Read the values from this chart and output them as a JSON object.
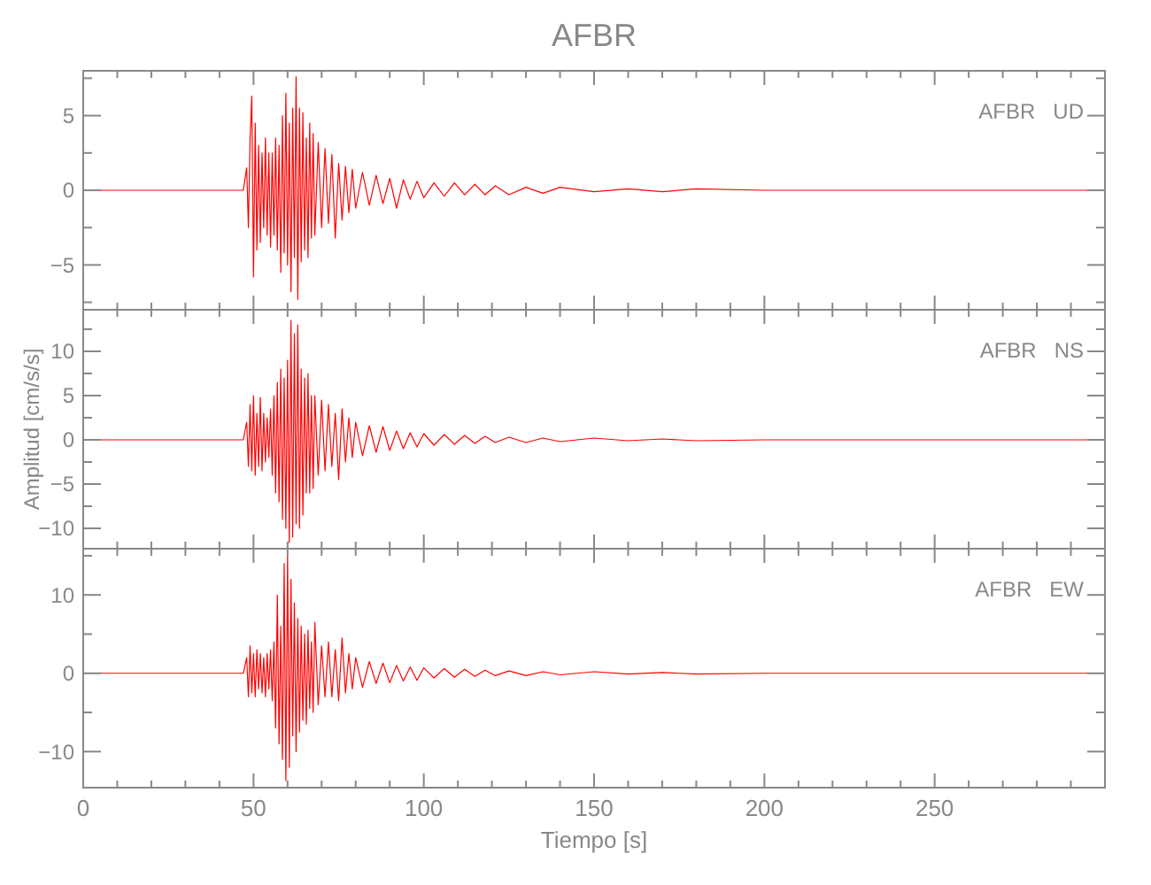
{
  "chart_data": [
    {
      "type": "line",
      "title": "AFBR",
      "annotations": [
        "AFBR   UD"
      ],
      "tick_labels": "y",
      "grid": false,
      "marker": "none",
      "line_style": "solid",
      "xlim": [
        0,
        300
      ],
      "xticks": [
        0,
        {
          "value": 10,
          "label": null
        },
        {
          "value": 20,
          "label": null
        },
        {
          "value": 30,
          "label": null
        },
        {
          "value": 40,
          "label": null
        },
        50,
        {
          "value": 60,
          "label": null
        },
        {
          "value": 70,
          "label": null
        },
        {
          "value": 80,
          "label": null
        },
        {
          "value": 90,
          "label": null
        },
        100,
        {
          "value": 110,
          "label": null
        },
        {
          "value": 120,
          "label": null
        },
        {
          "value": 130,
          "label": null
        },
        {
          "value": 140,
          "label": null
        },
        150,
        {
          "value": 160,
          "label": null
        },
        {
          "value": 170,
          "label": null
        },
        {
          "value": 180,
          "label": null
        },
        {
          "value": 190,
          "label": null
        },
        200,
        {
          "value": 210,
          "label": null
        },
        {
          "value": 220,
          "label": null
        },
        {
          "value": 230,
          "label": null
        },
        {
          "value": 240,
          "label": null
        },
        250,
        {
          "value": 260,
          "label": null
        },
        {
          "value": 270,
          "label": null
        },
        {
          "value": 280,
          "label": null
        },
        {
          "value": 290,
          "label": null
        }
      ],
      "ylim": [
        -8,
        8
      ],
      "yticks": [
        {
          "value": -7.5,
          "label": null
        },
        {
          "value": -5,
          "label": "−5"
        },
        {
          "value": -2.5,
          "label": null
        },
        0,
        {
          "value": 2.5,
          "label": null
        },
        5,
        {
          "value": 7.5,
          "label": null
        }
      ],
      "x": [
        0,
        47,
        48,
        48.5,
        49,
        49.5,
        50,
        50.5,
        51,
        51.5,
        52,
        52.5,
        53,
        53.5,
        54,
        54.5,
        55,
        55.5,
        56,
        56.5,
        57,
        57.5,
        58,
        58.5,
        59,
        59.5,
        60,
        60.5,
        61,
        61.5,
        62,
        62.5,
        63,
        63.5,
        64,
        64.5,
        65,
        65.5,
        66,
        66.5,
        67,
        67.5,
        68,
        69,
        70,
        71,
        72,
        73,
        74,
        75,
        76,
        77,
        78,
        79,
        80,
        82,
        84,
        86,
        88,
        90,
        92,
        94,
        96,
        98,
        100,
        103,
        106,
        109,
        112,
        115,
        118,
        121,
        125,
        130,
        135,
        140,
        150,
        160,
        170,
        180,
        200,
        300
      ],
      "series": [
        {
          "color": "#ff0000",
          "values": [
            0,
            0,
            1.5,
            -2.5,
            3.5,
            6.3,
            -5.8,
            4.5,
            -4,
            3,
            -3.5,
            2.5,
            -2.5,
            3.5,
            -3,
            2.5,
            -3.8,
            2.5,
            -3,
            3.5,
            -4,
            3,
            -5.5,
            5,
            -4.2,
            6.5,
            -5,
            4.5,
            -6.8,
            5.5,
            -4.5,
            7.6,
            -7.3,
            5.5,
            -4.8,
            5.2,
            -4,
            3.5,
            -4.5,
            4.5,
            -3.2,
            3.8,
            -3,
            3.2,
            -2.5,
            2.8,
            -2.2,
            2.4,
            -3.2,
            1.8,
            -2,
            1.6,
            -1.5,
            1.4,
            -1.2,
            1.2,
            -1,
            1,
            -0.9,
            0.8,
            -1.2,
            0.7,
            -0.6,
            0.6,
            -0.5,
            0.5,
            -0.4,
            0.5,
            -0.3,
            0.4,
            -0.3,
            0.3,
            -0.3,
            0.2,
            -0.2,
            0.2,
            -0.1,
            0.1,
            -0.1,
            0.1,
            0,
            0
          ]
        }
      ]
    },
    {
      "type": "line",
      "ylabel": "Amplitud  [cm/s/s]",
      "annotations": [
        "AFBR   NS"
      ],
      "tick_labels": "y",
      "grid": false,
      "marker": "none",
      "line_style": "solid",
      "xlim": [
        0,
        300
      ],
      "xticks": [
        0,
        {
          "value": 10,
          "label": null
        },
        {
          "value": 20,
          "label": null
        },
        {
          "value": 30,
          "label": null
        },
        {
          "value": 40,
          "label": null
        },
        50,
        {
          "value": 60,
          "label": null
        },
        {
          "value": 70,
          "label": null
        },
        {
          "value": 80,
          "label": null
        },
        {
          "value": 90,
          "label": null
        },
        100,
        {
          "value": 110,
          "label": null
        },
        {
          "value": 120,
          "label": null
        },
        {
          "value": 130,
          "label": null
        },
        {
          "value": 140,
          "label": null
        },
        150,
        {
          "value": 160,
          "label": null
        },
        {
          "value": 170,
          "label": null
        },
        {
          "value": 180,
          "label": null
        },
        {
          "value": 190,
          "label": null
        },
        200,
        {
          "value": 210,
          "label": null
        },
        {
          "value": 220,
          "label": null
        },
        {
          "value": 230,
          "label": null
        },
        {
          "value": 240,
          "label": null
        },
        250,
        {
          "value": 260,
          "label": null
        },
        {
          "value": 270,
          "label": null
        },
        {
          "value": 280,
          "label": null
        },
        {
          "value": 290,
          "label": null
        }
      ],
      "ylim": [
        -12.3,
        14.7
      ],
      "yticks": [
        {
          "value": -10,
          "label": "−10"
        },
        {
          "value": -7.5,
          "label": null
        },
        {
          "value": -5,
          "label": "−5"
        },
        {
          "value": -2.5,
          "label": null
        },
        0,
        {
          "value": 2.5,
          "label": null
        },
        5,
        {
          "value": 7.5,
          "label": null
        },
        10,
        {
          "value": 12.5,
          "label": null
        }
      ],
      "x": [
        0,
        47,
        48,
        48.5,
        49,
        49.5,
        50,
        50.5,
        51,
        51.5,
        52,
        52.5,
        53,
        53.5,
        54,
        54.5,
        55,
        55.5,
        56,
        56.5,
        57,
        57.5,
        58,
        58.5,
        59,
        59.5,
        60,
        60.5,
        61,
        61.5,
        62,
        62.5,
        63,
        63.5,
        64,
        64.5,
        65,
        65.5,
        66,
        66.5,
        67,
        67.5,
        68,
        69,
        70,
        71,
        72,
        73,
        74,
        75,
        76,
        77,
        78,
        79,
        80,
        82,
        84,
        86,
        88,
        90,
        92,
        94,
        96,
        98,
        100,
        103,
        106,
        109,
        112,
        115,
        118,
        121,
        125,
        130,
        135,
        140,
        150,
        160,
        170,
        180,
        200,
        300
      ],
      "series": [
        {
          "color": "#ff0000",
          "values": [
            0,
            0,
            2,
            -3,
            4,
            -3.5,
            5,
            -4,
            3,
            -3,
            4.8,
            -3.5,
            3,
            -2.5,
            2.5,
            -2,
            3.5,
            -4,
            5,
            -6,
            6.5,
            -7,
            8,
            -9,
            7,
            -10,
            9,
            -11.6,
            13.5,
            -11,
            12,
            -9.5,
            13,
            -10,
            8,
            -8.5,
            7,
            -6,
            7.5,
            -6,
            5,
            -5.5,
            5,
            -4,
            4.5,
            -3.5,
            4,
            -3,
            3,
            -4.5,
            3.5,
            -2.5,
            2.5,
            -2,
            2,
            -1.8,
            1.6,
            -1.4,
            1.5,
            -1.2,
            1,
            -1,
            0.8,
            -0.8,
            0.7,
            -0.6,
            0.6,
            -0.5,
            0.5,
            -0.4,
            0.4,
            -0.3,
            0.3,
            -0.3,
            0.2,
            -0.2,
            0.2,
            -0.1,
            0.1,
            -0.1,
            0,
            0
          ]
        }
      ]
    },
    {
      "type": "line",
      "xlabel": "Tiempo  [s]",
      "annotations": [
        "AFBR   EW"
      ],
      "grid": false,
      "marker": "none",
      "line_style": "solid",
      "xlim": [
        0,
        300
      ],
      "xticks": [
        0,
        {
          "value": 10,
          "label": null
        },
        {
          "value": 20,
          "label": null
        },
        {
          "value": 30,
          "label": null
        },
        {
          "value": 40,
          "label": null
        },
        50,
        {
          "value": 60,
          "label": null
        },
        {
          "value": 70,
          "label": null
        },
        {
          "value": 80,
          "label": null
        },
        {
          "value": 90,
          "label": null
        },
        100,
        {
          "value": 110,
          "label": null
        },
        {
          "value": 120,
          "label": null
        },
        {
          "value": 130,
          "label": null
        },
        {
          "value": 140,
          "label": null
        },
        150,
        {
          "value": 160,
          "label": null
        },
        {
          "value": 170,
          "label": null
        },
        {
          "value": 180,
          "label": null
        },
        {
          "value": 190,
          "label": null
        },
        200,
        {
          "value": 210,
          "label": null
        },
        {
          "value": 220,
          "label": null
        },
        {
          "value": 230,
          "label": null
        },
        {
          "value": 240,
          "label": null
        },
        250,
        {
          "value": 260,
          "label": null
        },
        {
          "value": 270,
          "label": null
        },
        {
          "value": 280,
          "label": null
        },
        {
          "value": 290,
          "label": null
        }
      ],
      "ylim": [
        -14.6,
        15.9
      ],
      "yticks": [
        {
          "value": -10,
          "label": "−10"
        },
        {
          "value": -5,
          "label": null
        },
        0,
        {
          "value": 5,
          "label": null
        },
        10,
        {
          "value": 15,
          "label": null
        }
      ],
      "x": [
        0,
        47,
        48,
        48.5,
        49,
        49.5,
        50,
        50.5,
        51,
        51.5,
        52,
        52.5,
        53,
        53.5,
        54,
        54.5,
        55,
        55.5,
        56,
        56.5,
        57,
        57.5,
        58,
        58.5,
        59,
        59.5,
        60,
        60.5,
        61,
        61.5,
        62,
        62.5,
        63,
        63.5,
        64,
        64.5,
        65,
        65.5,
        66,
        66.5,
        67,
        67.5,
        68,
        69,
        70,
        71,
        72,
        73,
        74,
        75,
        76,
        77,
        78,
        79,
        80,
        82,
        84,
        86,
        88,
        90,
        92,
        94,
        96,
        98,
        100,
        103,
        106,
        109,
        112,
        115,
        118,
        121,
        125,
        130,
        135,
        140,
        150,
        160,
        170,
        180,
        200,
        300
      ],
      "series": [
        {
          "color": "#ff0000",
          "values": [
            0,
            0,
            2,
            -3,
            3.5,
            -2.5,
            2.5,
            -3,
            3,
            -2,
            2.5,
            -2.5,
            2,
            -3,
            2.5,
            -2,
            3,
            -3.5,
            4,
            -7,
            10,
            -9,
            6,
            -11,
            14,
            -13.7,
            15,
            -12,
            12,
            -8,
            9,
            -10,
            7,
            -7.5,
            6,
            -6,
            5,
            -6.5,
            5.5,
            -4.5,
            4,
            -5,
            6.5,
            -4,
            3.5,
            -3,
            4,
            -3,
            3,
            -3.5,
            4.5,
            -2.5,
            2.5,
            -2,
            2,
            -1.8,
            1.5,
            -1.3,
            1.3,
            -1.2,
            1,
            -1,
            0.8,
            -0.9,
            0.7,
            -0.6,
            0.6,
            -0.5,
            0.5,
            -0.4,
            0.4,
            -0.3,
            0.3,
            -0.3,
            0.2,
            -0.2,
            0.2,
            -0.1,
            0.1,
            -0.1,
            0,
            0
          ]
        }
      ]
    }
  ]
}
